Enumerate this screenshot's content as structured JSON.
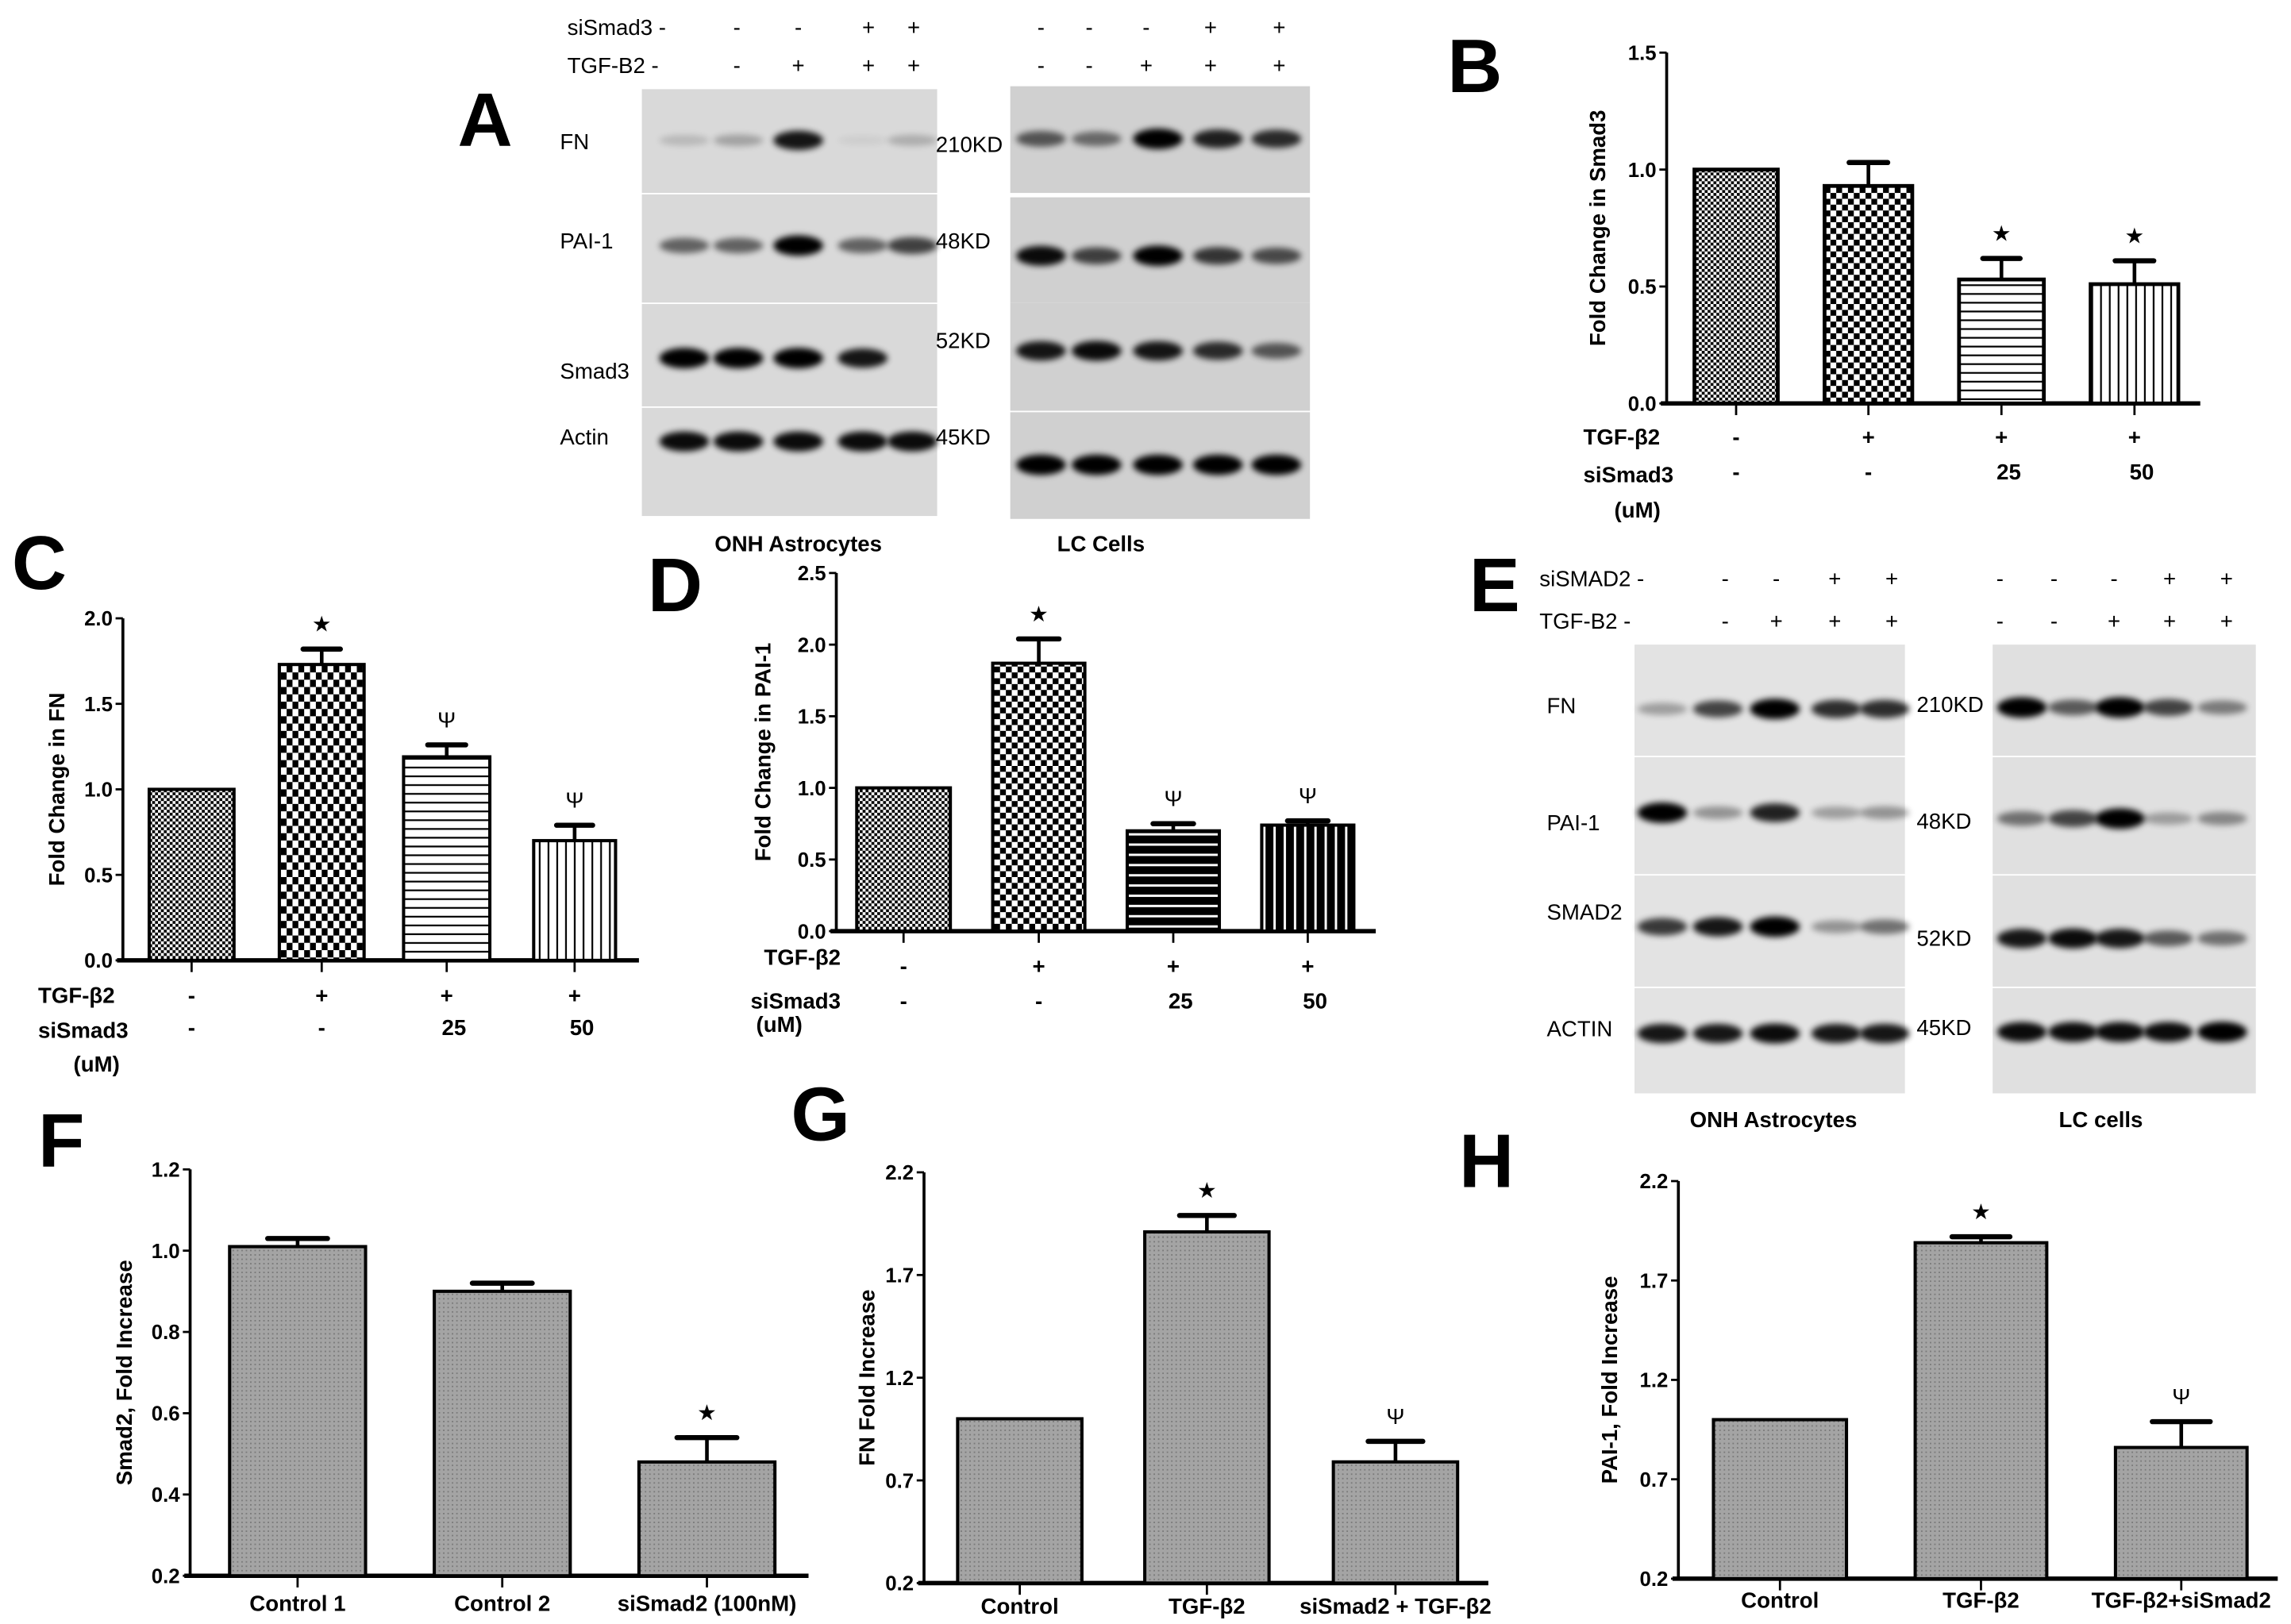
{
  "panels": {
    "A": {
      "letter": "A",
      "treatment_rows": [
        {
          "label": "siSmad3 -",
          "left": [
            "-",
            "-",
            "+",
            "+"
          ],
          "right": [
            "-",
            "-",
            "-",
            "+",
            "+"
          ]
        },
        {
          "label": "TGF-B2 -",
          "left": [
            "-",
            "+",
            "+",
            "+"
          ],
          "right": [
            "-",
            "-",
            "+",
            "+",
            "+"
          ]
        }
      ],
      "proteins": [
        "FN",
        "PAI-1",
        "Smad3",
        "Actin"
      ],
      "sizes": [
        "210KD",
        "48KD",
        "52KD",
        "45KD"
      ],
      "cell_types": [
        "ONH Astrocytes",
        "LC Cells"
      ]
    },
    "E": {
      "letter": "E",
      "treatment_rows": [
        {
          "label": "siSMAD2 -",
          "left": [
            "-",
            "-",
            "+",
            "+"
          ],
          "right": [
            "-",
            "-",
            "-",
            "+",
            "+"
          ]
        },
        {
          "label": "TGF-B2 -",
          "left": [
            "-",
            "+",
            "+",
            "+"
          ],
          "right": [
            "-",
            "-",
            "+",
            "+",
            "+"
          ]
        }
      ],
      "proteins": [
        "FN",
        "PAI-1",
        "SMAD2",
        "ACTIN"
      ],
      "sizes": [
        "210KD",
        "48KD",
        "52KD",
        "45KD"
      ],
      "cell_types": [
        "ONH Astrocytes",
        "LC cells"
      ]
    }
  },
  "chart_data": [
    {
      "panel": "B",
      "type": "bar",
      "ylabel": "Fold Change in Smad3",
      "ylim": [
        0,
        1.5
      ],
      "yticks": [
        "0.0",
        "0.5",
        "1.0",
        "1.5"
      ],
      "values": [
        1.0,
        0.93,
        0.53,
        0.51
      ],
      "errors": [
        0,
        0.1,
        0.09,
        0.1
      ],
      "significance": [
        "",
        "",
        "★",
        "★"
      ],
      "patterns": [
        "fine-checker",
        "coarse-checker",
        "horizontal-lines",
        "vertical-lines"
      ],
      "condition_rows": [
        {
          "label": "TGF-β2",
          "values": [
            "-",
            "+",
            "+",
            "+"
          ]
        },
        {
          "label": "siSmad3",
          "unit": "(uM)",
          "values": [
            "-",
            "-",
            "25",
            "50"
          ]
        }
      ]
    },
    {
      "panel": "C",
      "type": "bar",
      "ylabel": "Fold Change in FN",
      "ylim": [
        0,
        2.0
      ],
      "yticks": [
        "0.0",
        "0.5",
        "1.0",
        "1.5",
        "2.0"
      ],
      "values": [
        1.0,
        1.73,
        1.19,
        0.7
      ],
      "errors": [
        0,
        0.09,
        0.07,
        0.09
      ],
      "significance": [
        "",
        "★",
        "Ψ",
        "Ψ"
      ],
      "patterns": [
        "fine-checker",
        "rect-checker",
        "horizontal-lines",
        "vertical-lines"
      ],
      "condition_rows": [
        {
          "label": "TGF-β2",
          "values": [
            "-",
            "+",
            "+",
            "+"
          ]
        },
        {
          "label": "siSmad3",
          "unit": "(uM)",
          "values": [
            "-",
            "-",
            "25",
            "50"
          ]
        }
      ]
    },
    {
      "panel": "D",
      "type": "bar",
      "ylabel": "Fold Change in PAI-1",
      "ylim": [
        0,
        2.5
      ],
      "yticks": [
        "0.0",
        "0.5",
        "1.0",
        "1.5",
        "2.0",
        "2.5"
      ],
      "values": [
        1.0,
        1.87,
        0.7,
        0.74
      ],
      "errors": [
        0,
        0.17,
        0.05,
        0.03
      ],
      "significance": [
        "",
        "★",
        "Ψ",
        "Ψ"
      ],
      "patterns": [
        "fine-checker",
        "coarse-checker",
        "black-horizontal-lines",
        "black-vertical-lines"
      ],
      "condition_rows": [
        {
          "label": "TGF-β2",
          "values": [
            "-",
            "+",
            "+",
            "+"
          ]
        },
        {
          "label": "siSmad3",
          "unit": "(uM)",
          "values": [
            "-",
            "-",
            "25",
            "50"
          ]
        }
      ]
    },
    {
      "panel": "F",
      "type": "bar",
      "ylabel": "Smad2, Fold Increase",
      "ylim": [
        0.2,
        1.2
      ],
      "yticks": [
        "0.2",
        "0.4",
        "0.6",
        "0.8",
        "1.0",
        "1.2"
      ],
      "categories": [
        "Control 1",
        "Control 2",
        "siSmad2 (100nM)"
      ],
      "values": [
        1.01,
        0.9,
        0.48
      ],
      "errors": [
        0.02,
        0.02,
        0.06
      ],
      "significance": [
        "",
        "",
        "★"
      ],
      "color": "#9c9c9c"
    },
    {
      "panel": "G",
      "type": "bar",
      "ylabel": "FN Fold Increase",
      "ylim": [
        0.2,
        2.2
      ],
      "yticks": [
        "0.2",
        "0.7",
        "1.2",
        "1.7",
        "2.2"
      ],
      "categories": [
        "Control",
        "TGF-β2",
        "siSmad2 + TGF-β2"
      ],
      "values": [
        1.0,
        1.91,
        0.79
      ],
      "errors": [
        0,
        0.08,
        0.1
      ],
      "significance": [
        "",
        "★",
        "Ψ"
      ],
      "color": "#9c9c9c"
    },
    {
      "panel": "H",
      "type": "bar",
      "ylabel": "PAI-1, Fold Increase",
      "ylim": [
        0.2,
        2.2
      ],
      "yticks": [
        "0.2",
        "0.7",
        "1.2",
        "1.7",
        "2.2"
      ],
      "categories": [
        "Control",
        "TGF-β2",
        "TGF-β2+siSmad2"
      ],
      "values": [
        1.0,
        1.89,
        0.86
      ],
      "errors": [
        0,
        0.03,
        0.13
      ],
      "significance": [
        "",
        "★",
        "Ψ"
      ],
      "color": "#9c9c9c"
    }
  ]
}
